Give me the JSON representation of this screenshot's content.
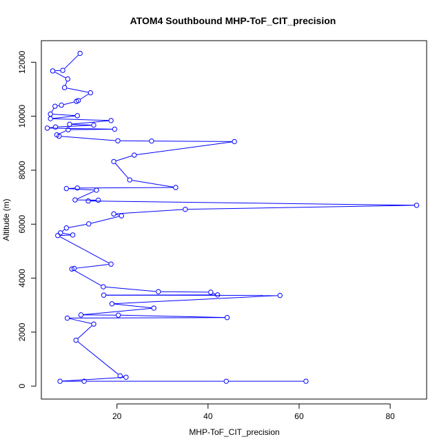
{
  "chart_data": {
    "type": "line",
    "title": "ATOM4 Southbound MHP-ToF_CIT_precision",
    "xlabel": "MHP-ToF_CIT_precision",
    "ylabel": "Altitude (m)",
    "xlim": [
      3.4,
      88.0
    ],
    "ylim": [
      -480,
      12800
    ],
    "xticks": [
      20,
      40,
      60,
      80
    ],
    "yticks": [
      0,
      2000,
      4000,
      6000,
      8000,
      10000,
      12000
    ],
    "line_color": "#0000ff",
    "marker": "open-circle",
    "grid": false,
    "legend": "none",
    "series": [
      {
        "points": [
          [
            11.9,
            12330
          ],
          [
            8.1,
            11700
          ],
          [
            5.9,
            11680
          ],
          [
            9.2,
            11380
          ],
          [
            8.5,
            11060
          ],
          [
            14.2,
            10870
          ],
          [
            11.5,
            10580
          ],
          [
            11.1,
            10550
          ],
          [
            7.8,
            10410
          ],
          [
            6.4,
            10370
          ],
          [
            5.4,
            10080
          ],
          [
            11.3,
            10020
          ],
          [
            5.4,
            9910
          ],
          [
            18.7,
            9840
          ],
          [
            9.6,
            9700
          ],
          [
            14.9,
            9670
          ],
          [
            6.5,
            9600
          ],
          [
            4.7,
            9560
          ],
          [
            19.5,
            9520
          ],
          [
            9.3,
            9500
          ],
          [
            6.8,
            9310
          ],
          [
            7.3,
            9260
          ],
          [
            20.2,
            9090
          ],
          [
            27.6,
            9080
          ],
          [
            45.8,
            9060
          ],
          [
            23.8,
            8560
          ],
          [
            19.3,
            8320
          ],
          [
            22.8,
            7640
          ],
          [
            32.9,
            7360
          ],
          [
            11.3,
            7340
          ],
          [
            8.9,
            7320
          ],
          [
            15.5,
            7260
          ],
          [
            10.8,
            6900
          ],
          [
            15.9,
            6890
          ],
          [
            13.7,
            6860
          ],
          [
            85.8,
            6700
          ],
          [
            35.0,
            6550
          ],
          [
            19.3,
            6380
          ],
          [
            21.0,
            6310
          ],
          [
            13.8,
            6010
          ],
          [
            8.9,
            5860
          ],
          [
            7.6,
            5680
          ],
          [
            10.3,
            5600
          ],
          [
            7.0,
            5580
          ],
          [
            18.7,
            4520
          ],
          [
            10.6,
            4360
          ],
          [
            10.1,
            4340
          ],
          [
            17.0,
            3680
          ],
          [
            29.1,
            3500
          ],
          [
            40.6,
            3480
          ],
          [
            42.1,
            3380
          ],
          [
            17.1,
            3370
          ],
          [
            55.8,
            3360
          ],
          [
            18.9,
            3050
          ],
          [
            28.1,
            2890
          ],
          [
            12.1,
            2640
          ],
          [
            20.3,
            2630
          ],
          [
            44.2,
            2540
          ],
          [
            9.1,
            2520
          ],
          [
            14.9,
            2300
          ],
          [
            11.0,
            1700
          ],
          [
            20.7,
            380
          ],
          [
            22.0,
            330
          ],
          [
            7.5,
            180
          ],
          [
            12.8,
            180
          ],
          [
            44.0,
            180
          ],
          [
            61.5,
            180
          ]
        ]
      }
    ]
  }
}
